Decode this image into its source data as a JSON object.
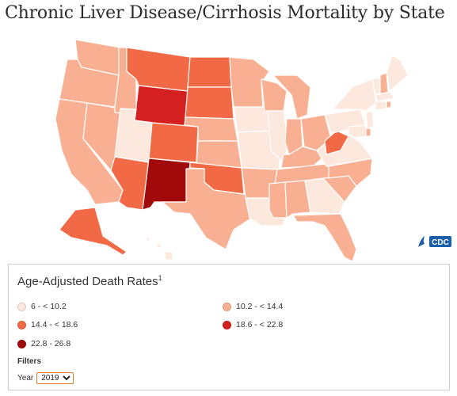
{
  "title": "Chronic Liver Disease/Cirrhosis Mortality by State",
  "map": {
    "legend_title": "Age-Adjusted Death Rates",
    "legend_footnote": "1",
    "classes": [
      {
        "label": "6 - < 10.2",
        "color": "#fde8de"
      },
      {
        "label": "10.2 - < 14.4",
        "color": "#f9b092"
      },
      {
        "label": "14.4 - < 18.6",
        "color": "#f26a45"
      },
      {
        "label": "18.6 - < 22.8",
        "color": "#d42020"
      },
      {
        "label": "22.8 - 26.8",
        "color": "#a10a0a"
      }
    ],
    "states": [
      {
        "id": "WA",
        "class": 1
      },
      {
        "id": "OR",
        "class": 1
      },
      {
        "id": "CA",
        "class": 1
      },
      {
        "id": "NV",
        "class": 1
      },
      {
        "id": "ID",
        "class": 1
      },
      {
        "id": "MT",
        "class": 2
      },
      {
        "id": "WY",
        "class": 3
      },
      {
        "id": "UT",
        "class": 0
      },
      {
        "id": "AZ",
        "class": 2
      },
      {
        "id": "CO",
        "class": 2
      },
      {
        "id": "NM",
        "class": 4
      },
      {
        "id": "ND",
        "class": 2
      },
      {
        "id": "SD",
        "class": 2
      },
      {
        "id": "NE",
        "class": 1
      },
      {
        "id": "KS",
        "class": 1
      },
      {
        "id": "OK",
        "class": 2
      },
      {
        "id": "TX",
        "class": 1
      },
      {
        "id": "MN",
        "class": 1
      },
      {
        "id": "IA",
        "class": 0
      },
      {
        "id": "MO",
        "class": 0
      },
      {
        "id": "AR",
        "class": 1
      },
      {
        "id": "LA",
        "class": 0
      },
      {
        "id": "WI",
        "class": 1
      },
      {
        "id": "IL",
        "class": 0
      },
      {
        "id": "MI",
        "class": 1
      },
      {
        "id": "IN",
        "class": 1
      },
      {
        "id": "OH",
        "class": 1
      },
      {
        "id": "KY",
        "class": 1
      },
      {
        "id": "TN",
        "class": 1
      },
      {
        "id": "MS",
        "class": 1
      },
      {
        "id": "AL",
        "class": 1
      },
      {
        "id": "GA",
        "class": 0
      },
      {
        "id": "FL",
        "class": 1
      },
      {
        "id": "SC",
        "class": 1
      },
      {
        "id": "NC",
        "class": 1
      },
      {
        "id": "VA",
        "class": 0
      },
      {
        "id": "WV",
        "class": 2
      },
      {
        "id": "PA",
        "class": 0
      },
      {
        "id": "NY",
        "class": 0
      },
      {
        "id": "VT",
        "class": 0
      },
      {
        "id": "NH",
        "class": 1
      },
      {
        "id": "ME",
        "class": 0
      },
      {
        "id": "MA",
        "class": 0
      },
      {
        "id": "RI",
        "class": 1
      },
      {
        "id": "CT",
        "class": 0
      },
      {
        "id": "NJ",
        "class": 0
      },
      {
        "id": "DE",
        "class": 1
      },
      {
        "id": "MD",
        "class": 0
      },
      {
        "id": "AK",
        "class": 2
      },
      {
        "id": "HI",
        "class": 0
      }
    ]
  },
  "filters": {
    "label": "Filters",
    "year_label": "Year",
    "year_options": [
      "2019"
    ],
    "year_selected": "2019"
  },
  "logo": {
    "text": "CDC",
    "color": "#1a5fa8"
  }
}
